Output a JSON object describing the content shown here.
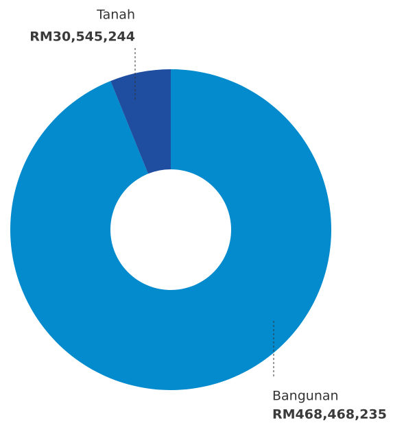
{
  "chart_data": {
    "type": "donut",
    "categories": [
      "Bangunan",
      "Tanah"
    ],
    "values": [
      468468235,
      30545244
    ],
    "value_labels": [
      "RM468,468,235",
      "RM30,545,244"
    ],
    "colors": [
      "#038bcd",
      "#1f4ea0"
    ]
  }
}
